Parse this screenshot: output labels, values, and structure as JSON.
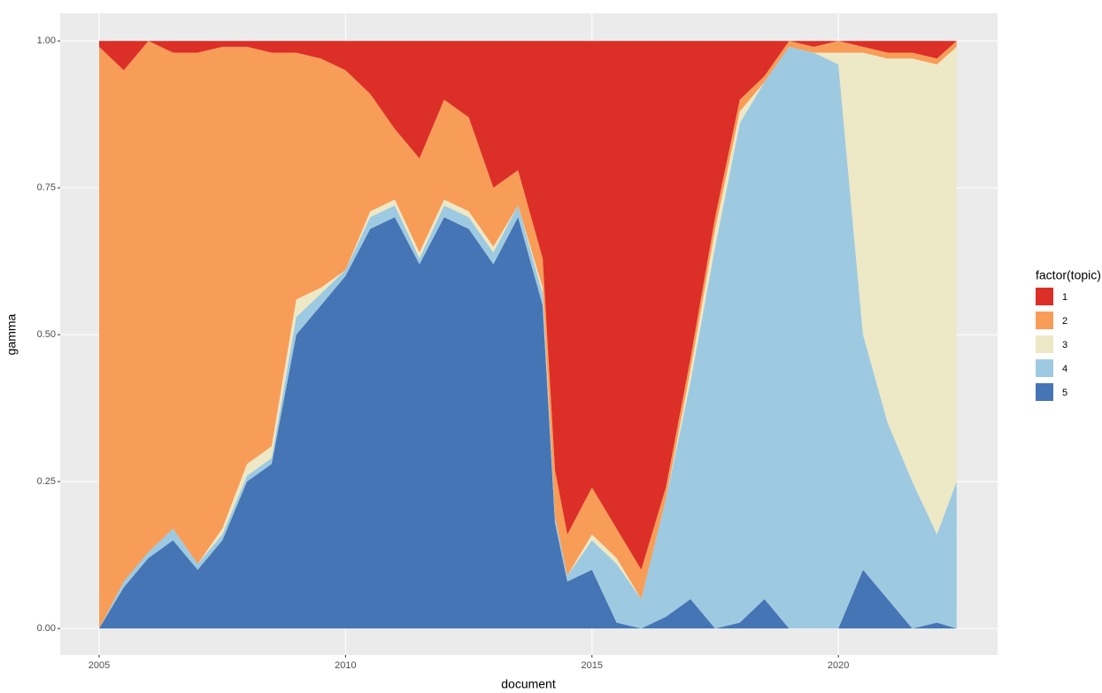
{
  "chart_data": {
    "type": "area",
    "stacked": true,
    "x_label": "document",
    "y_label": "gamma",
    "legend_title": "factor(topic)",
    "legend": "right",
    "grid": true,
    "x": [
      2005.0,
      2005.5,
      2006.0,
      2006.5,
      2007.0,
      2007.5,
      2008.0,
      2008.5,
      2009.0,
      2009.5,
      2010.0,
      2010.5,
      2011.0,
      2011.5,
      2012.0,
      2012.5,
      2013.0,
      2013.5,
      2014.0,
      2014.25,
      2014.5,
      2015.0,
      2015.5,
      2016.0,
      2016.5,
      2017.0,
      2017.5,
      2018.0,
      2018.5,
      2019.0,
      2019.5,
      2020.0,
      2020.5,
      2021.0,
      2021.5,
      2022.0,
      2022.4
    ],
    "series": [
      {
        "name": "1",
        "color": "#dc2f27",
        "values": [
          0.01,
          0.05,
          0.0,
          0.02,
          0.02,
          0.01,
          0.01,
          0.02,
          0.02,
          0.03,
          0.05,
          0.09,
          0.15,
          0.2,
          0.1,
          0.13,
          0.25,
          0.22,
          0.37,
          0.73,
          0.84,
          0.76,
          0.83,
          0.9,
          0.76,
          0.54,
          0.3,
          0.1,
          0.06,
          0.0,
          0.01,
          0.0,
          0.01,
          0.02,
          0.02,
          0.03,
          0.0
        ]
      },
      {
        "name": "2",
        "color": "#f89d58",
        "values": [
          0.99,
          0.87,
          0.87,
          0.81,
          0.87,
          0.82,
          0.71,
          0.67,
          0.42,
          0.39,
          0.34,
          0.2,
          0.12,
          0.16,
          0.17,
          0.16,
          0.1,
          0.06,
          0.05,
          0.08,
          0.07,
          0.08,
          0.05,
          0.05,
          0.02,
          0.02,
          0.02,
          0.02,
          0.01,
          0.01,
          0.01,
          0.02,
          0.01,
          0.01,
          0.01,
          0.01,
          0.01
        ]
      },
      {
        "name": "3",
        "color": "#ede8c5",
        "values": [
          0.0,
          0.0,
          0.0,
          0.0,
          0.0,
          0.01,
          0.02,
          0.02,
          0.03,
          0.01,
          0.0,
          0.01,
          0.01,
          0.01,
          0.01,
          0.01,
          0.01,
          0.0,
          0.01,
          0.0,
          0.0,
          0.01,
          0.01,
          0.0,
          0.0,
          0.02,
          0.03,
          0.02,
          0.0,
          0.0,
          0.0,
          0.02,
          0.48,
          0.62,
          0.72,
          0.8,
          0.74
        ]
      },
      {
        "name": "4",
        "color": "#9ecae1",
        "values": [
          0.0,
          0.01,
          0.01,
          0.02,
          0.01,
          0.01,
          0.01,
          0.01,
          0.03,
          0.02,
          0.01,
          0.02,
          0.02,
          0.01,
          0.02,
          0.02,
          0.02,
          0.02,
          0.02,
          0.01,
          0.01,
          0.05,
          0.1,
          0.05,
          0.2,
          0.37,
          0.65,
          0.85,
          0.88,
          0.99,
          0.98,
          0.96,
          0.4,
          0.3,
          0.25,
          0.15,
          0.25
        ]
      },
      {
        "name": "5",
        "color": "#4575b4",
        "values": [
          0.0,
          0.07,
          0.12,
          0.15,
          0.1,
          0.15,
          0.25,
          0.28,
          0.5,
          0.55,
          0.6,
          0.68,
          0.7,
          0.62,
          0.7,
          0.68,
          0.62,
          0.7,
          0.55,
          0.18,
          0.08,
          0.1,
          0.01,
          0.0,
          0.02,
          0.05,
          0.0,
          0.01,
          0.05,
          0.0,
          0.0,
          0.0,
          0.1,
          0.05,
          0.0,
          0.01,
          0.0
        ]
      }
    ],
    "xlim": [
      2004.21,
      2023.23
    ],
    "xticks": [
      2005,
      2010,
      2015,
      2020
    ],
    "ylim": [
      -0.045,
      1.047
    ],
    "yticks": [
      {
        "value": 0,
        "label": "0.00"
      },
      {
        "value": 0.25,
        "label": "0.25"
      },
      {
        "value": 0.5,
        "label": "0.50"
      },
      {
        "value": 0.75,
        "label": "0.75"
      },
      {
        "value": 1,
        "label": "1.00"
      }
    ]
  }
}
